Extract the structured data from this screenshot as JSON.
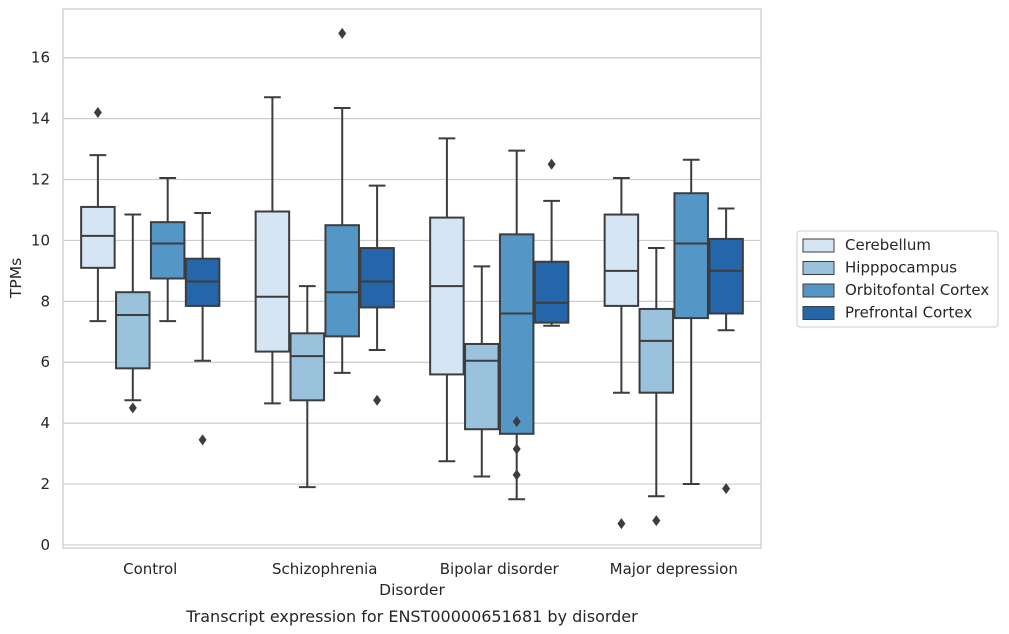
{
  "chart_data": {
    "type": "box",
    "title": "",
    "caption": "Transcript expression for ENST00000651681 by disorder",
    "xlabel": "Disorder",
    "ylabel": "TPMs",
    "ylim": [
      -0.1,
      17.6
    ],
    "yticks": [
      0,
      2,
      4,
      6,
      8,
      10,
      12,
      14,
      16
    ],
    "grid": "horizontal",
    "legend_position": "right",
    "categories": [
      "Control",
      "Schizophrenia",
      "Bipolar disorder",
      "Major depression"
    ],
    "series": [
      {
        "name": "Cerebellum",
        "color": "#d6e5f4",
        "boxes": [
          {
            "whislo": 7.35,
            "q1": 9.1,
            "med": 10.15,
            "q3": 11.1,
            "whishi": 12.8,
            "fliers": [
              14.2
            ]
          },
          {
            "whislo": 4.65,
            "q1": 6.35,
            "med": 8.15,
            "q3": 10.95,
            "whishi": 14.7,
            "fliers": []
          },
          {
            "whislo": 2.75,
            "q1": 5.6,
            "med": 8.5,
            "q3": 10.75,
            "whishi": 13.35,
            "fliers": []
          },
          {
            "whislo": 5.0,
            "q1": 7.85,
            "med": 9.0,
            "q3": 10.85,
            "whishi": 12.05,
            "fliers": [
              0.7
            ]
          }
        ]
      },
      {
        "name": "Hipppocampus",
        "color": "#9ac2dc",
        "boxes": [
          {
            "whislo": 4.75,
            "q1": 5.8,
            "med": 7.55,
            "q3": 8.3,
            "whishi": 10.85,
            "fliers": [
              4.5
            ]
          },
          {
            "whislo": 1.9,
            "q1": 4.75,
            "med": 6.2,
            "q3": 6.95,
            "whishi": 8.5,
            "fliers": []
          },
          {
            "whislo": 2.25,
            "q1": 3.8,
            "med": 6.05,
            "q3": 6.6,
            "whishi": 9.15,
            "fliers": []
          },
          {
            "whislo": 1.6,
            "q1": 5.0,
            "med": 6.7,
            "q3": 7.75,
            "whishi": 9.75,
            "fliers": [
              0.8
            ]
          }
        ]
      },
      {
        "name": "Orbitofontal Cortex",
        "color": "#5497c6",
        "boxes": [
          {
            "whislo": 7.35,
            "q1": 8.75,
            "med": 9.9,
            "q3": 10.6,
            "whishi": 12.05,
            "fliers": []
          },
          {
            "whislo": 5.65,
            "q1": 6.85,
            "med": 8.3,
            "q3": 10.5,
            "whishi": 14.35,
            "fliers": [
              16.8
            ]
          },
          {
            "whislo": 1.5,
            "q1": 3.65,
            "med": 7.6,
            "q3": 10.2,
            "whishi": 12.95,
            "fliers": [
              4.05,
              3.15,
              2.3
            ]
          },
          {
            "whislo": 2.0,
            "q1": 7.45,
            "med": 9.9,
            "q3": 11.55,
            "whishi": 12.65,
            "fliers": []
          }
        ]
      },
      {
        "name": "Prefrontal Cortex",
        "color": "#2565a9",
        "boxes": [
          {
            "whislo": 6.05,
            "q1": 7.85,
            "med": 8.65,
            "q3": 9.4,
            "whishi": 10.9,
            "fliers": [
              3.45
            ]
          },
          {
            "whislo": 6.4,
            "q1": 7.8,
            "med": 8.65,
            "q3": 9.75,
            "whishi": 11.8,
            "fliers": [
              4.75
            ]
          },
          {
            "whislo": 7.2,
            "q1": 7.3,
            "med": 7.95,
            "q3": 9.3,
            "whishi": 11.3,
            "fliers": [
              12.5
            ]
          },
          {
            "whislo": 7.05,
            "q1": 7.6,
            "med": 9.0,
            "q3": 10.05,
            "whishi": 11.05,
            "fliers": [
              1.85
            ]
          }
        ]
      }
    ]
  }
}
